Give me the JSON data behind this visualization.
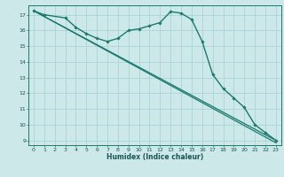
{
  "title": "",
  "xlabel": "Humidex (Indice chaleur)",
  "bg_color": "#cce8e8",
  "grid_color": "#aad4d4",
  "line_color": "#1a7a6e",
  "xlim": [
    -0.5,
    23.5
  ],
  "ylim": [
    8.7,
    17.6
  ],
  "yticks": [
    9,
    10,
    11,
    12,
    13,
    14,
    15,
    16,
    17
  ],
  "xticks": [
    0,
    1,
    2,
    3,
    4,
    5,
    6,
    7,
    8,
    9,
    10,
    11,
    12,
    13,
    14,
    15,
    16,
    17,
    18,
    19,
    20,
    21,
    22,
    23
  ],
  "series": [
    {
      "x": [
        0,
        1,
        3,
        4,
        5,
        6,
        7,
        8,
        9,
        10,
        11,
        12,
        13,
        14,
        15,
        16,
        17,
        18,
        19,
        20,
        21,
        22,
        23
      ],
      "y": [
        17.25,
        17.0,
        16.8,
        16.2,
        15.8,
        15.5,
        15.3,
        15.5,
        16.0,
        16.1,
        16.3,
        16.5,
        17.2,
        17.1,
        16.7,
        15.3,
        13.2,
        12.3,
        11.7,
        11.1,
        10.0,
        9.5,
        9.0
      ],
      "marker": true,
      "linewidth": 1.0
    },
    {
      "x": [
        0,
        23
      ],
      "y": [
        17.25,
        9.0
      ],
      "marker": false,
      "linewidth": 0.9
    },
    {
      "x": [
        0,
        23
      ],
      "y": [
        17.25,
        8.85
      ],
      "marker": false,
      "linewidth": 0.9
    }
  ]
}
